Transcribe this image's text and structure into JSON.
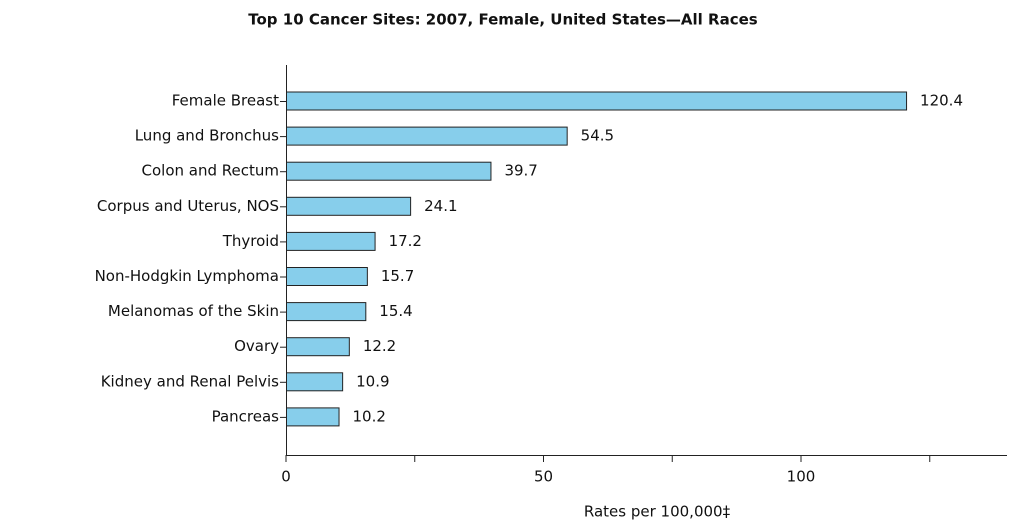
{
  "chart_data": {
    "type": "bar",
    "orientation": "horizontal",
    "title": "Top 10 Cancer Sites: 2007, Female, United States—All Races",
    "x_label": "Rates per 100,000‡",
    "categories": [
      "Female Breast",
      "Lung and Bronchus",
      "Colon and Rectum",
      "Corpus and Uterus, NOS",
      "Thyroid",
      "Non-Hodgkin Lymphoma",
      "Melanomas of the Skin",
      "Ovary",
      "Kidney and Renal Pelvis",
      "Pancreas"
    ],
    "values": [
      120.4,
      54.5,
      39.7,
      24.1,
      17.2,
      15.7,
      15.4,
      12.2,
      10.9,
      10.2
    ],
    "color": "#87ceeb",
    "xlim": [
      0,
      140
    ],
    "xticks": [
      0,
      50,
      100
    ],
    "xminor_ticks": [
      25,
      75,
      125
    ],
    "grid": false
  }
}
